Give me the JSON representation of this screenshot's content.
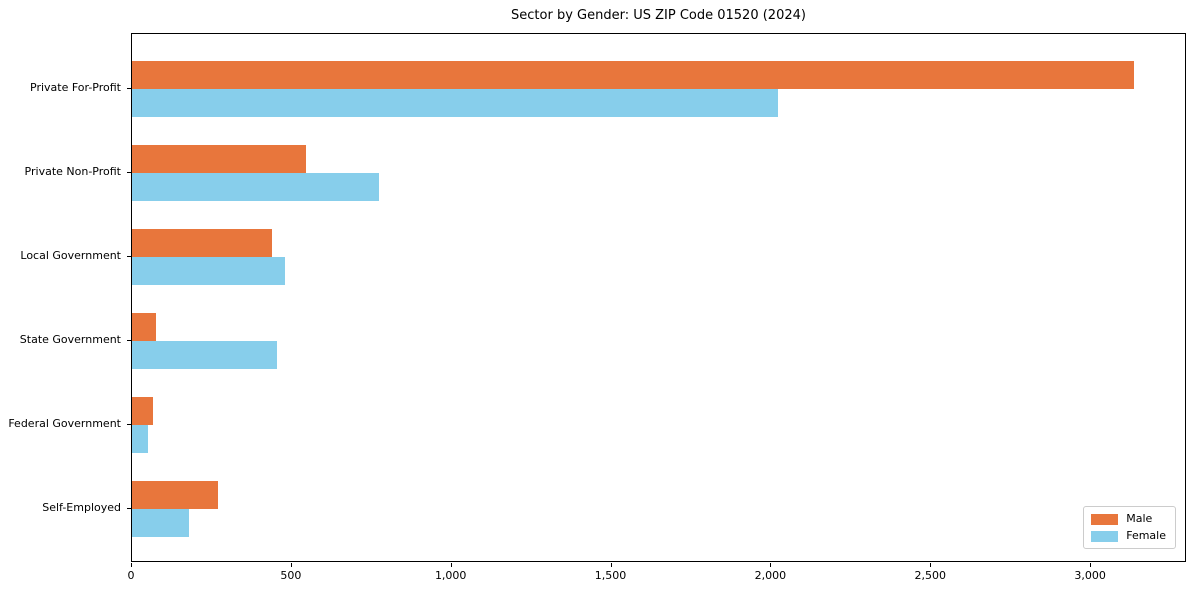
{
  "chart_data": {
    "type": "bar",
    "orientation": "horizontal",
    "title": "Sector by Gender: US ZIP Code 01520 (2024)",
    "categories": [
      "Private For-Profit",
      "Private Non-Profit",
      "Local Government",
      "State Government",
      "Federal Government",
      "Self-Employed"
    ],
    "series": [
      {
        "name": "Male",
        "color": "#E8763C",
        "values": [
          3140,
          545,
          440,
          75,
          65,
          270
        ]
      },
      {
        "name": "Female",
        "color": "#87CEEB",
        "values": [
          2025,
          775,
          480,
          455,
          50,
          180
        ]
      }
    ],
    "xlabel": "",
    "ylabel": "",
    "xlim": [
      0,
      3300
    ],
    "x_ticks": [
      0,
      500,
      1000,
      1500,
      2000,
      2500,
      3000
    ],
    "x_tick_labels": [
      "0",
      "500",
      "1,000",
      "1,500",
      "2,000",
      "2,500",
      "3,000"
    ],
    "grid": false,
    "legend": {
      "position": "lower right",
      "entries": [
        "Male",
        "Female"
      ]
    }
  },
  "colors": {
    "male": "#E8763C",
    "female": "#87CEEB",
    "spine": "#000000",
    "legend_border": "#CCCCCC",
    "background": "#FFFFFF"
  }
}
